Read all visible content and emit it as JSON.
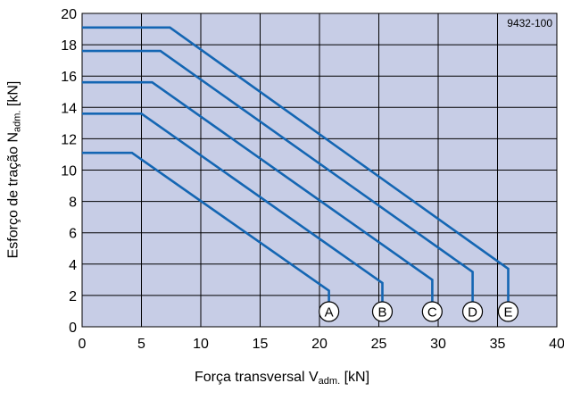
{
  "chart_data": {
    "type": "line",
    "xlabel": {
      "main": "Força transversal V",
      "sub": "adm.",
      "unit": " [kN]"
    },
    "ylabel": {
      "main": "Esforço de tração N",
      "sub": "adm.",
      "unit": " [kN]"
    },
    "xlim": [
      0,
      40
    ],
    "ylim": [
      0,
      20
    ],
    "xticks": [
      0,
      5,
      10,
      15,
      20,
      25,
      30,
      35,
      40
    ],
    "yticks": [
      0,
      2,
      4,
      6,
      8,
      10,
      12,
      14,
      16,
      18,
      20
    ],
    "grid": true,
    "corner_label": "9432-100",
    "colors": {
      "background": "#c7cde6",
      "line": "#1466b3",
      "grid": "#000000"
    },
    "series": [
      {
        "marker": "A",
        "points": [
          [
            0,
            11.1
          ],
          [
            4.2,
            11.1
          ],
          [
            20.8,
            2.3
          ],
          [
            20.8,
            0.9
          ]
        ]
      },
      {
        "marker": "B",
        "points": [
          [
            0,
            13.6
          ],
          [
            5.0,
            13.6
          ],
          [
            25.3,
            2.8
          ],
          [
            25.3,
            0.9
          ]
        ]
      },
      {
        "marker": "C",
        "points": [
          [
            0,
            15.6
          ],
          [
            5.9,
            15.6
          ],
          [
            29.5,
            3.0
          ],
          [
            29.5,
            0.9
          ]
        ]
      },
      {
        "marker": "D",
        "points": [
          [
            0,
            17.6
          ],
          [
            6.6,
            17.6
          ],
          [
            32.9,
            3.5
          ],
          [
            32.9,
            0.9
          ]
        ]
      },
      {
        "marker": "E",
        "points": [
          [
            0,
            19.1
          ],
          [
            7.4,
            19.1
          ],
          [
            35.9,
            3.7
          ],
          [
            35.9,
            0.9
          ]
        ]
      }
    ]
  }
}
